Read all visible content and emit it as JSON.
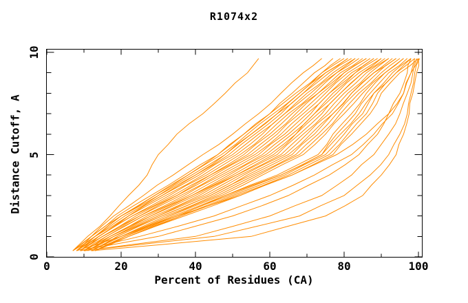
{
  "chart_data": {
    "type": "line",
    "title": "R1074x2",
    "xlabel": "Percent of Residues (CA)",
    "ylabel": "Distance Cutoff, A",
    "xlim": [
      0,
      101
    ],
    "ylim": [
      0,
      10.2
    ],
    "x_ticks_major": [
      0,
      20,
      40,
      60,
      80,
      100
    ],
    "x_ticks_minor": [
      10,
      30,
      50,
      70,
      90
    ],
    "y_ticks_major": [
      0,
      5,
      10
    ],
    "y_ticks_minor": [
      1,
      2,
      3,
      4,
      6,
      7,
      8,
      9
    ],
    "grid": false,
    "legend": "none",
    "line_color": "#ff8c00",
    "frame_color": "#000000",
    "y_levels": [
      0.3,
      1,
      2,
      3,
      4,
      5,
      6,
      7,
      8,
      9,
      9.7
    ],
    "series_x_at_y_levels": [
      [
        7,
        11,
        17,
        22,
        27,
        30,
        35,
        42,
        48,
        54,
        57
      ],
      [
        8,
        12,
        18,
        26,
        34,
        42,
        50,
        57,
        63,
        69,
        74
      ],
      [
        8,
        13,
        20,
        29,
        38,
        46,
        53,
        60,
        66,
        72,
        77
      ],
      [
        9,
        14,
        22,
        31,
        40,
        48,
        55,
        62,
        68,
        74,
        79
      ],
      [
        7,
        12,
        19,
        28,
        37,
        46,
        53,
        60,
        67,
        74,
        80
      ],
      [
        7,
        12,
        20,
        29,
        38,
        47,
        54,
        61,
        68,
        75,
        81
      ],
      [
        7,
        13,
        20,
        30,
        39,
        48,
        55,
        62,
        69,
        75,
        81
      ],
      [
        8,
        13,
        21,
        30,
        40,
        49,
        56,
        63,
        69,
        76,
        82
      ],
      [
        8,
        13,
        22,
        31,
        41,
        50,
        57,
        64,
        70,
        77,
        83
      ],
      [
        8,
        14,
        22,
        32,
        42,
        51,
        58,
        64,
        71,
        78,
        83
      ],
      [
        8,
        14,
        23,
        33,
        43,
        52,
        59,
        65,
        72,
        78,
        84
      ],
      [
        9,
        14,
        23,
        34,
        44,
        53,
        60,
        66,
        73,
        79,
        85
      ],
      [
        9,
        15,
        24,
        35,
        44,
        54,
        61,
        67,
        73,
        80,
        86
      ],
      [
        9,
        15,
        25,
        35,
        45,
        55,
        62,
        68,
        74,
        80,
        86
      ],
      [
        9,
        15,
        25,
        36,
        46,
        56,
        63,
        69,
        75,
        81,
        87
      ],
      [
        10,
        16,
        26,
        37,
        47,
        57,
        64,
        70,
        76,
        82,
        88
      ],
      [
        10,
        16,
        26,
        38,
        48,
        58,
        65,
        71,
        76,
        83,
        88
      ],
      [
        10,
        17,
        27,
        39,
        49,
        59,
        66,
        72,
        77,
        83,
        89
      ],
      [
        10,
        17,
        28,
        39,
        50,
        60,
        67,
        72,
        78,
        84,
        90
      ],
      [
        11,
        17,
        28,
        40,
        51,
        61,
        67,
        73,
        79,
        85,
        90
      ],
      [
        11,
        18,
        29,
        41,
        51,
        62,
        68,
        74,
        79,
        85,
        91
      ],
      [
        11,
        18,
        30,
        42,
        52,
        63,
        69,
        75,
        80,
        86,
        92
      ],
      [
        11,
        18,
        30,
        43,
        53,
        64,
        70,
        76,
        81,
        87,
        92
      ],
      [
        12,
        19,
        31,
        44,
        54,
        65,
        71,
        77,
        82,
        88,
        93
      ],
      [
        12,
        19,
        31,
        44,
        55,
        66,
        72,
        77,
        82,
        88,
        94
      ],
      [
        12,
        20,
        32,
        45,
        56,
        67,
        73,
        78,
        83,
        89,
        94
      ],
      [
        12,
        20,
        33,
        46,
        57,
        68,
        74,
        79,
        84,
        90,
        95
      ],
      [
        12,
        20,
        33,
        47,
        58,
        69,
        75,
        80,
        85,
        91,
        96
      ],
      [
        13,
        21,
        34,
        48,
        62,
        73,
        77,
        82,
        86,
        91,
        96
      ],
      [
        13,
        21,
        35,
        48,
        63,
        74,
        78,
        83,
        87,
        92,
        97
      ],
      [
        13,
        21,
        35,
        49,
        63,
        74,
        79,
        84,
        88,
        93,
        98
      ],
      [
        13,
        22,
        36,
        50,
        64,
        75,
        80,
        85,
        88,
        94,
        98
      ],
      [
        13,
        22,
        36,
        51,
        65,
        76,
        81,
        86,
        89,
        94,
        99
      ],
      [
        13,
        22,
        37,
        52,
        66,
        77,
        82,
        87,
        90,
        95,
        100
      ],
      [
        9,
        30,
        50,
        65,
        76,
        84,
        89,
        92,
        95,
        97,
        98
      ],
      [
        10,
        40,
        60,
        74,
        82,
        88,
        92,
        95,
        97,
        98.5,
        99.5
      ],
      [
        9,
        25,
        45,
        60,
        72,
        82,
        88,
        93,
        96,
        98,
        99
      ],
      [
        8,
        20,
        35,
        52,
        66,
        78,
        86,
        92,
        96,
        98,
        100
      ],
      [
        12,
        55,
        75,
        85,
        90,
        94,
        96,
        97.5,
        98.5,
        99.5,
        100
      ],
      [
        10,
        45,
        68,
        80,
        87,
        92,
        95,
        97,
        98,
        99,
        100.3
      ]
    ]
  }
}
